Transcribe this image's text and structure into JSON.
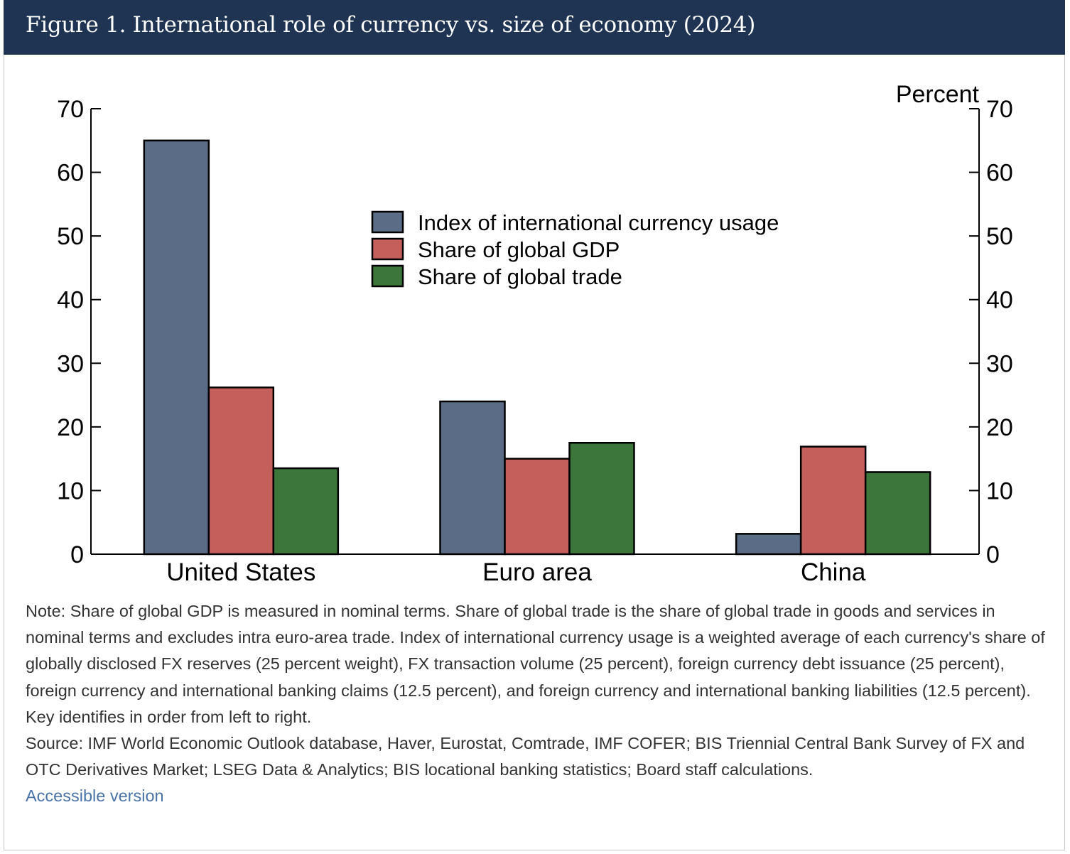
{
  "header": {
    "title": "Figure 1. International role of currency vs. size of economy (2024)"
  },
  "chart_data": {
    "type": "bar",
    "categories": [
      "United States",
      "Euro area",
      "China"
    ],
    "series": [
      {
        "name": "Index of international currency usage",
        "values": [
          65,
          24,
          3.2
        ],
        "color": "#5b6c86"
      },
      {
        "name": "Share of global GDP",
        "values": [
          26.2,
          15,
          16.9
        ],
        "color": "#c55f5b"
      },
      {
        "name": "Share of global trade",
        "values": [
          13.5,
          17.5,
          12.9
        ],
        "color": "#3d763b"
      }
    ],
    "unit_label": "Percent",
    "ylim": [
      0,
      70
    ],
    "yticks": [
      "0",
      "10",
      "20",
      "30",
      "40",
      "50",
      "60",
      "70"
    ],
    "grid": false,
    "legend_position": "top-center"
  },
  "footer": {
    "note": "Note: Share of global GDP is measured in nominal terms. Share of global trade is the share of global trade in goods and services in nominal terms and excludes intra euro-area trade. Index of international currency usage is a weighted average of each currency's share of globally disclosed FX reserves (25 percent weight), FX transaction volume (25 percent), foreign currency debt issuance (25 percent), foreign currency and international banking claims (12.5 percent), and foreign currency and international banking liabilities (12.5 percent). Key identifies in order from left to right.",
    "source": "Source: IMF World Economic Outlook database, Haver, Eurostat, Comtrade, IMF COFER; BIS Triennial Central Bank Survey of FX and OTC Derivatives Market; LSEG Data & Analytics; BIS locational banking statistics; Board staff calculations.",
    "accessible_link": "Accessible version"
  }
}
